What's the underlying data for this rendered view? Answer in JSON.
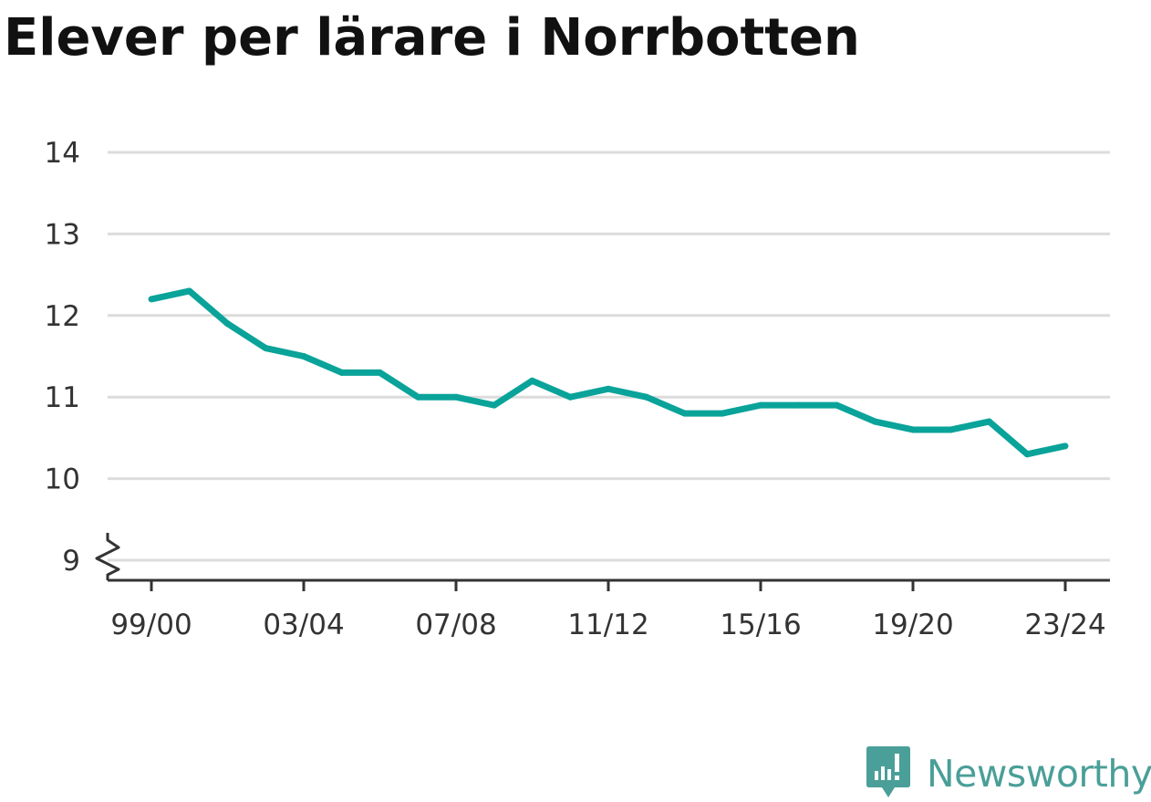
{
  "colors": {
    "line": "#0aa39a",
    "grid": "#dcdcdc",
    "axis": "#333333",
    "text": "#333333",
    "brand": "#4a9f98"
  },
  "brand": {
    "name": "Newsworthy",
    "icon": "newsworthy-logo-icon"
  },
  "chart_data": {
    "type": "line",
    "title": "Elever per lärare i Norrbotten",
    "xlabel": "",
    "ylabel": "",
    "ylim": [
      9,
      14
    ],
    "y_axis_break": true,
    "grid": true,
    "yticks": [
      9,
      10,
      11,
      12,
      13,
      14
    ],
    "xticks": [
      "99/00",
      "03/04",
      "07/08",
      "11/12",
      "15/16",
      "19/20",
      "23/24"
    ],
    "x": [
      "99/00",
      "00/01",
      "01/02",
      "02/03",
      "03/04",
      "04/05",
      "05/06",
      "06/07",
      "07/08",
      "08/09",
      "09/10",
      "10/11",
      "11/12",
      "12/13",
      "13/14",
      "14/15",
      "15/16",
      "16/17",
      "17/18",
      "18/19",
      "19/20",
      "20/21",
      "21/22",
      "22/23",
      "23/24"
    ],
    "series": [
      {
        "values": [
          12.2,
          12.3,
          11.9,
          11.6,
          11.5,
          11.3,
          11.3,
          11.0,
          11.0,
          10.9,
          11.2,
          11.0,
          11.1,
          11.0,
          10.8,
          10.8,
          10.9,
          10.9,
          10.9,
          10.7,
          10.6,
          10.6,
          10.7,
          10.3,
          10.4
        ]
      }
    ]
  }
}
